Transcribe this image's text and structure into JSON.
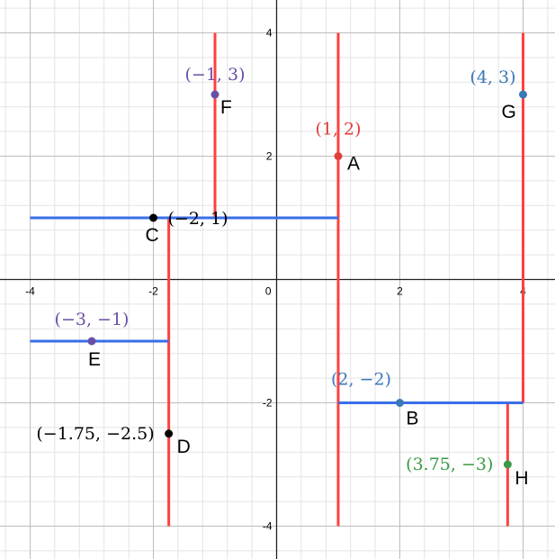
{
  "chart_data": {
    "type": "scatter",
    "xlim": [
      -4.5,
      4.5
    ],
    "ylim": [
      -4.5,
      4.5
    ],
    "grid": true,
    "x_ticks": [
      {
        "value": -4,
        "label": "-4"
      },
      {
        "value": -2,
        "label": "-2"
      },
      {
        "value": 2,
        "label": "2"
      },
      {
        "value": 4,
        "label": "4"
      }
    ],
    "y_ticks": [
      {
        "value": 4,
        "label": "4"
      },
      {
        "value": 2,
        "label": "2"
      },
      {
        "value": -2,
        "label": "-2"
      },
      {
        "value": -4,
        "label": "-4"
      }
    ],
    "origin_label": "0",
    "points": [
      {
        "name": "A",
        "x": 1,
        "y": 2,
        "label": "(1, 2)",
        "color": "#e0403c"
      },
      {
        "name": "B",
        "x": 2,
        "y": -2,
        "label": "(2, −2)",
        "color": "#3a78b8"
      },
      {
        "name": "C",
        "x": -2,
        "y": 1,
        "label": "(−2, 1)",
        "color": "#000000"
      },
      {
        "name": "D",
        "x": -1.75,
        "y": -2.5,
        "label": "(−1.75, −2.5)",
        "color": "#000000"
      },
      {
        "name": "E",
        "x": -3,
        "y": -1,
        "label": "(−3, −1)",
        "color": "#6a4fa8"
      },
      {
        "name": "F",
        "x": -1,
        "y": 3,
        "label": "(−1, 3)",
        "color": "#6a4fa8"
      },
      {
        "name": "G",
        "x": 4,
        "y": 3,
        "label": "(4, 3)",
        "color": "#3a78b8"
      },
      {
        "name": "H",
        "x": 3.75,
        "y": -3,
        "label": "(3.75, −3)",
        "color": "#3a9a45"
      }
    ],
    "segments": [
      {
        "x1": -1,
        "y1": 1,
        "x2": -1,
        "y2": 4,
        "color": "#ff4040"
      },
      {
        "x1": 1,
        "y1": -4,
        "x2": 1,
        "y2": 4,
        "color": "#ff4040"
      },
      {
        "x1": 4,
        "y1": -2,
        "x2": 4,
        "y2": 4,
        "color": "#ff4040"
      },
      {
        "x1": -1.75,
        "y1": -4,
        "x2": -1.75,
        "y2": 1,
        "color": "#ff4040"
      },
      {
        "x1": 3.75,
        "y1": -4,
        "x2": 3.75,
        "y2": -2,
        "color": "#ff4040"
      },
      {
        "x1": -4,
        "y1": 1,
        "x2": 1,
        "y2": 1,
        "color": "#3a6ee8"
      },
      {
        "x1": -4,
        "y1": -1,
        "x2": -1.75,
        "y2": -1,
        "color": "#3a6ee8"
      },
      {
        "x1": 1,
        "y1": -2,
        "x2": 4,
        "y2": -2,
        "color": "#3a6ee8"
      }
    ]
  }
}
